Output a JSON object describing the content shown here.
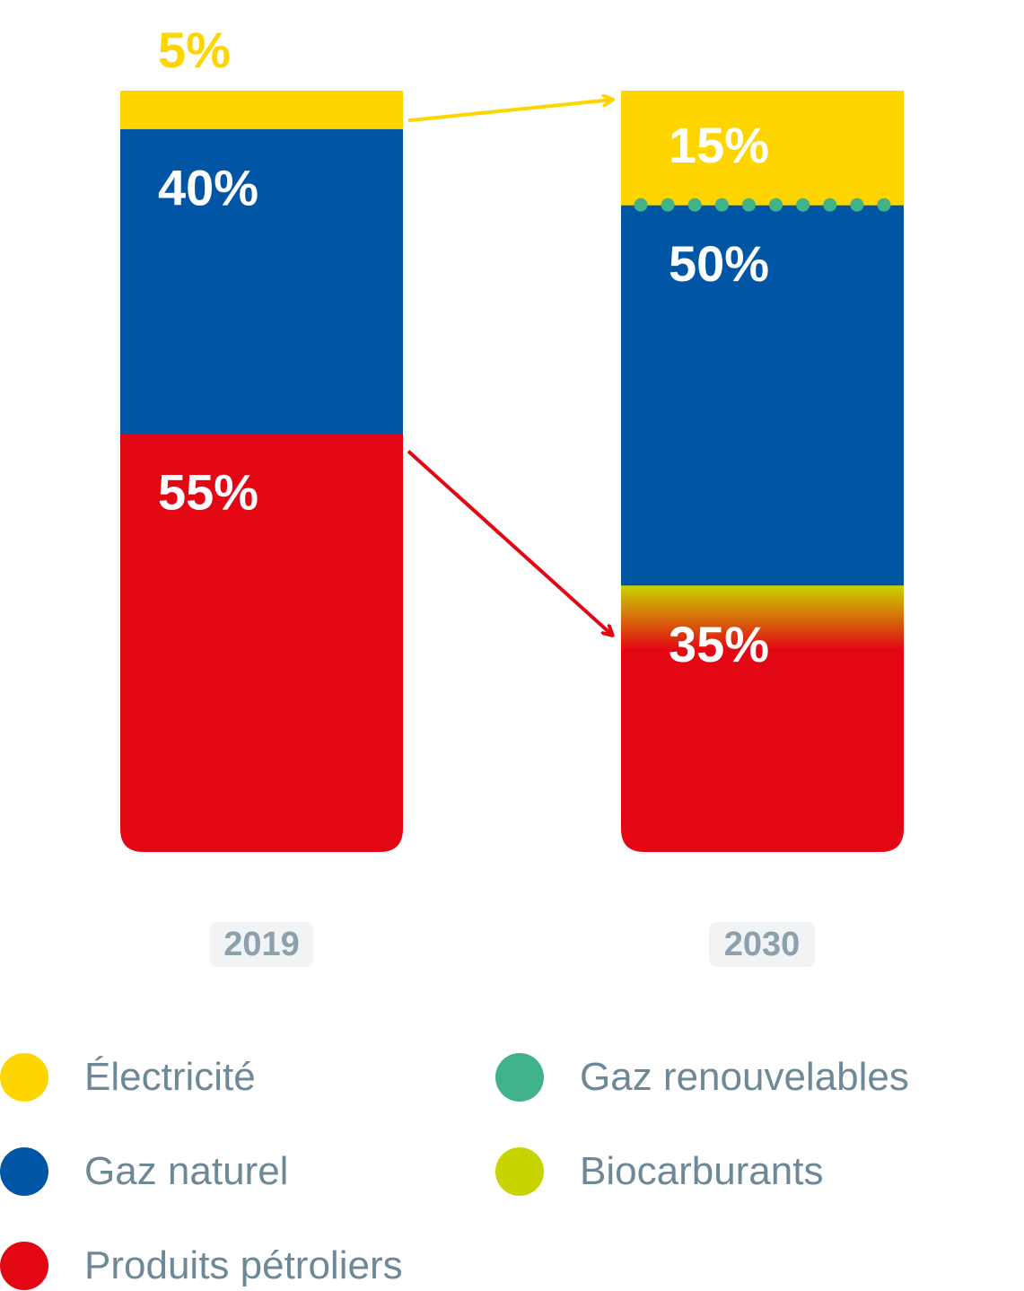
{
  "colors": {
    "electricite": "#ffd500",
    "gaz_naturel": "#0055a4",
    "produits_petroliers": "#e30613",
    "gaz_renouvelables": "#40b38b",
    "biocarburants": "#c8d400"
  },
  "chart_data": {
    "type": "bar",
    "stacked": true,
    "categories": [
      "2019",
      "2030"
    ],
    "ylim": [
      0,
      100
    ],
    "series": [
      {
        "name": "Produits pétroliers",
        "values": [
          55,
          35
        ],
        "labels": [
          "55%",
          "35%"
        ]
      },
      {
        "name": "Gaz naturel",
        "values": [
          40,
          50
        ],
        "labels": [
          "40%",
          "50%"
        ]
      },
      {
        "name": "Électricité",
        "values": [
          5,
          15
        ],
        "labels": [
          "5%",
          "15%"
        ]
      }
    ],
    "annotations": [
      "2030 Gaz naturel segment includes Gaz renouvelables (dotted boundary)",
      "2030 Produits pétroliers segment includes Biocarburants (gradient transition)"
    ],
    "legend": [
      {
        "label": "Électricité",
        "color_key": "electricite"
      },
      {
        "label": "Gaz renouvelables",
        "color_key": "gaz_renouvelables"
      },
      {
        "label": "Gaz naturel",
        "color_key": "gaz_naturel"
      },
      {
        "label": "Biocarburants",
        "color_key": "biocarburants"
      },
      {
        "label": "Produits pétroliers",
        "color_key": "produits_petroliers"
      }
    ],
    "legend_position": "bottom"
  }
}
